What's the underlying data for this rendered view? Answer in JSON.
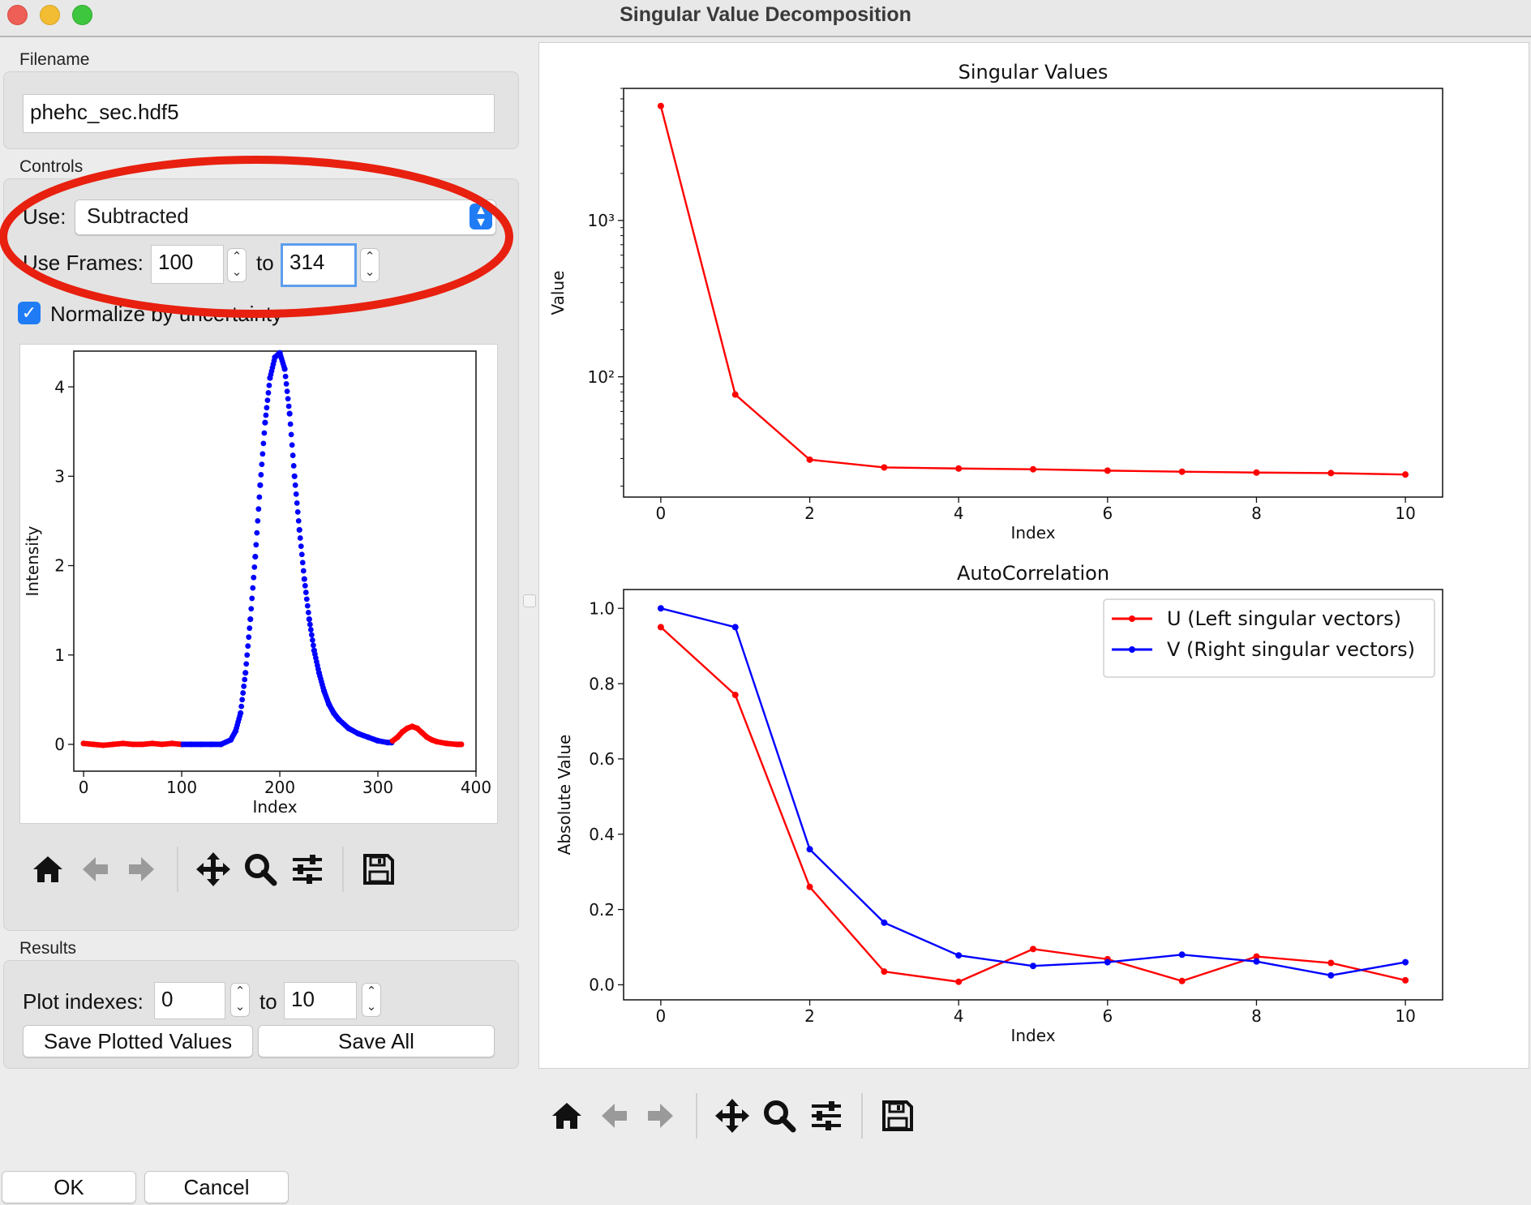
{
  "window": {
    "title": "Singular Value Decomposition"
  },
  "filename": {
    "label": "Filename",
    "value": "phehc_sec.hdf5"
  },
  "controls": {
    "label": "Controls",
    "use_label": "Use:",
    "use_value": "Subtracted",
    "frames_label": "Use Frames:",
    "frames_start": "100",
    "frames_to": "to",
    "frames_end": "314",
    "normalize_label": "Normalize by uncertainty",
    "normalize_checked": true,
    "highlight_color": "#e8200f"
  },
  "results": {
    "label": "Results",
    "plot_indexes_label": "Plot indexes:",
    "plot_start": "0",
    "plot_to": "to",
    "plot_end": "10",
    "save_plotted_label": "Save Plotted Values",
    "save_all_label": "Save All"
  },
  "dialog": {
    "ok_label": "OK",
    "cancel_label": "Cancel"
  },
  "toolbar_icons": [
    "home-icon",
    "back-arrow-icon",
    "forward-arrow-icon",
    "pan-icon",
    "zoom-icon",
    "configure-subplots-icon",
    "save-icon"
  ],
  "chart_data": [
    {
      "type": "scatter",
      "title": "",
      "xlabel": "Index",
      "ylabel": "Intensity",
      "xlim": [
        -10,
        400
      ],
      "ylim": [
        -0.3,
        4.4
      ],
      "xticks": [
        "0",
        "100",
        "200",
        "300",
        "400"
      ],
      "yticks": [
        "0",
        "1",
        "2",
        "3",
        "4"
      ],
      "grid": false,
      "series": [
        {
          "color": "#ff0000",
          "x": [
            0,
            10,
            20,
            30,
            40,
            50,
            60,
            70,
            80,
            90,
            100
          ],
          "y": [
            0.01,
            0,
            -0.01,
            0,
            0.01,
            0,
            0,
            0.01,
            0,
            0.01,
            0
          ]
        },
        {
          "color": "#0000ff",
          "x": [
            100,
            110,
            120,
            130,
            140,
            150,
            155,
            160,
            165,
            170,
            175,
            180,
            185,
            190,
            195,
            200,
            205,
            210,
            215,
            220,
            225,
            230,
            235,
            240,
            245,
            250,
            255,
            260,
            270,
            280,
            290,
            300,
            310,
            314
          ],
          "y": [
            0,
            0,
            0,
            0,
            0,
            0.05,
            0.15,
            0.35,
            0.8,
            1.4,
            2.1,
            2.9,
            3.6,
            4.1,
            4.33,
            4.38,
            4.2,
            3.7,
            3.0,
            2.4,
            1.85,
            1.4,
            1.05,
            0.8,
            0.6,
            0.45,
            0.35,
            0.28,
            0.18,
            0.12,
            0.08,
            0.04,
            0.02,
            0.02
          ]
        },
        {
          "color": "#ff0000",
          "x": [
            314,
            320,
            325,
            330,
            335,
            340,
            345,
            350,
            355,
            360,
            370,
            380,
            385
          ],
          "y": [
            0.03,
            0.08,
            0.14,
            0.18,
            0.2,
            0.18,
            0.13,
            0.08,
            0.05,
            0.03,
            0.01,
            0,
            0
          ]
        }
      ]
    },
    {
      "type": "line",
      "title": "Singular Values",
      "xlabel": "Index",
      "ylabel": "Value",
      "yscale": "log",
      "xlim": [
        -0.5,
        10.5
      ],
      "ylim": [
        17,
        7000
      ],
      "xticks": [
        "0",
        "2",
        "4",
        "6",
        "8",
        "10"
      ],
      "yticks": [
        "10³",
        "10²"
      ],
      "grid": false,
      "series": [
        {
          "color": "#ff0000",
          "x": [
            0,
            1,
            2,
            3,
            4,
            5,
            6,
            7,
            8,
            9,
            10
          ],
          "y": [
            5400,
            77,
            29.5,
            26.3,
            25.9,
            25.6,
            25.1,
            24.7,
            24.4,
            24.2,
            23.7
          ]
        }
      ]
    },
    {
      "type": "line",
      "title": "AutoCorrelation",
      "xlabel": "Index",
      "ylabel": "Absolute Value",
      "xlim": [
        -0.5,
        10.5
      ],
      "ylim": [
        -0.04,
        1.05
      ],
      "xticks": [
        "0",
        "2",
        "4",
        "6",
        "8",
        "10"
      ],
      "yticks": [
        "0.0",
        "0.2",
        "0.4",
        "0.6",
        "0.8",
        "1.0"
      ],
      "grid": false,
      "legend": "top-right",
      "series": [
        {
          "name": "U (Left singular vectors)",
          "color": "#ff0000",
          "x": [
            0,
            1,
            2,
            3,
            4,
            5,
            6,
            7,
            8,
            9,
            10
          ],
          "y": [
            0.95,
            0.77,
            0.26,
            0.035,
            0.008,
            0.095,
            0.068,
            0.01,
            0.075,
            0.058,
            0.012
          ]
        },
        {
          "name": "V (Right singular vectors)",
          "color": "#0000ff",
          "x": [
            0,
            1,
            2,
            3,
            4,
            5,
            6,
            7,
            8,
            9,
            10
          ],
          "y": [
            1.0,
            0.95,
            0.36,
            0.165,
            0.078,
            0.05,
            0.06,
            0.08,
            0.062,
            0.025,
            0.06
          ]
        }
      ]
    }
  ]
}
